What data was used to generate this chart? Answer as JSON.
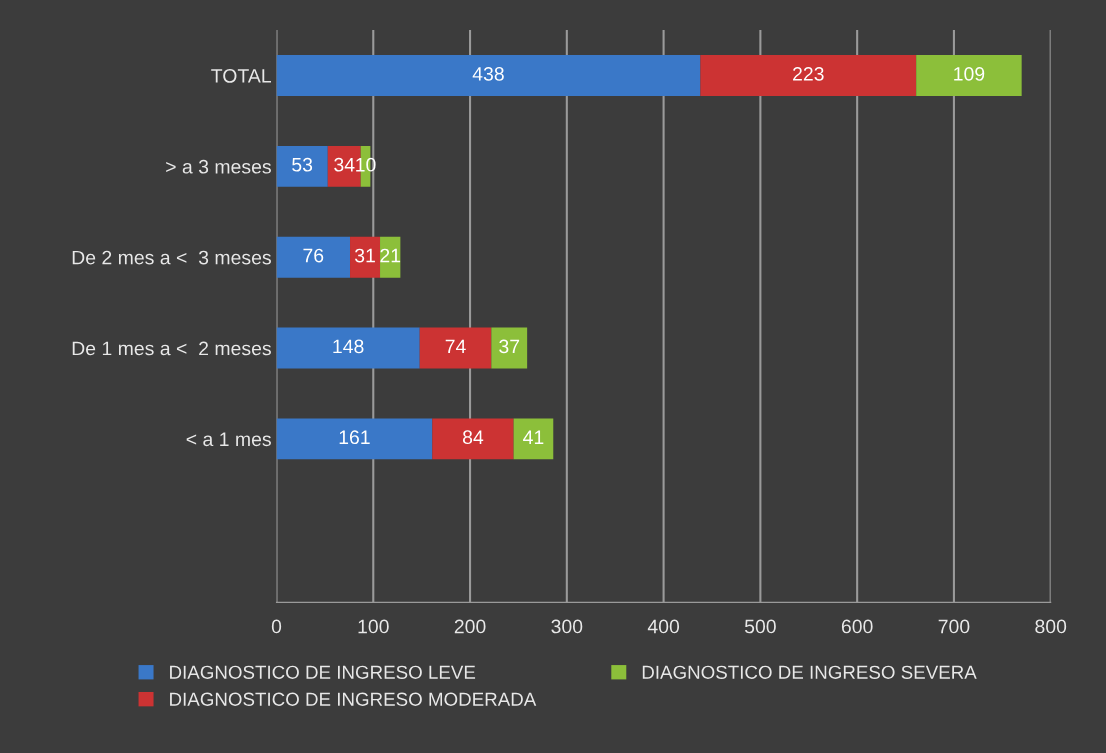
{
  "chart_data": {
    "type": "bar",
    "orientation": "horizontal",
    "stacked": true,
    "data_labels": true,
    "categories": [
      "TOTAL",
      "> a 3 meses",
      "De 2 mes a <  3 meses",
      "De 1 mes a <  2 meses",
      "< a 1 mes"
    ],
    "series": [
      {
        "name": "DIAGNOSTICO DE INGRESO LEVE",
        "color": "#3a78c8",
        "values": [
          438,
          53,
          76,
          148,
          161
        ]
      },
      {
        "name": "DIAGNOSTICO DE INGRESO MODERADA",
        "color": "#cc3333",
        "values": [
          223,
          34,
          31,
          74,
          84
        ]
      },
      {
        "name": "DIAGNOSTICO DE INGRESO SEVERA",
        "color": "#8cbf3a",
        "values": [
          109,
          10,
          21,
          37,
          41
        ]
      }
    ],
    "xlim": [
      0,
      800
    ],
    "xticks": [
      0,
      100,
      200,
      300,
      400,
      500,
      600,
      700,
      800
    ],
    "grid": "x",
    "legend": "bottom"
  }
}
